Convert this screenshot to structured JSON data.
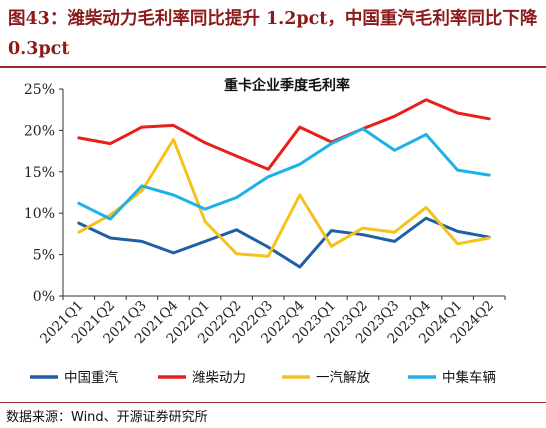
{
  "figure": {
    "title": "图43：潍柴动力毛利率同比提升 1.2pct，中国重汽毛利率同比下降 0.3pct",
    "source": "数据来源：Wind、开源证券研究所"
  },
  "chart_data": {
    "type": "line",
    "title": "重卡企业季度毛利率",
    "xlabel": "",
    "ylabel": "",
    "ylim": [
      0,
      25
    ],
    "yticks": [
      "0%",
      "5%",
      "10%",
      "15%",
      "20%",
      "25%"
    ],
    "grid": false,
    "legend_position": "bottom",
    "categories": [
      "2021Q1",
      "2021Q2",
      "2021Q3",
      "2021Q4",
      "2022Q1",
      "2022Q2",
      "2022Q3",
      "2022Q4",
      "2023Q1",
      "2023Q2",
      "2023Q3",
      "2023Q4",
      "2024Q1",
      "2024Q2"
    ],
    "series": [
      {
        "name": "中国重汽",
        "color": "#1f5fa6",
        "values": [
          8.8,
          7.0,
          6.6,
          5.2,
          6.6,
          8.0,
          5.9,
          3.5,
          7.9,
          7.4,
          6.6,
          9.4,
          7.8,
          7.1
        ]
      },
      {
        "name": "潍柴动力",
        "color": "#e8201a",
        "values": [
          19.1,
          18.4,
          20.4,
          20.6,
          18.5,
          16.9,
          15.3,
          20.4,
          18.6,
          20.2,
          21.7,
          23.7,
          22.1,
          21.4
        ]
      },
      {
        "name": "一汽解放",
        "color": "#f5c21b",
        "values": [
          7.7,
          9.8,
          12.7,
          18.9,
          9.0,
          5.1,
          4.8,
          12.2,
          6.0,
          8.2,
          7.7,
          10.7,
          6.3,
          7.0
        ]
      },
      {
        "name": "中集车辆",
        "color": "#20b0e8",
        "values": [
          11.2,
          9.3,
          13.3,
          12.2,
          10.5,
          11.9,
          14.4,
          15.9,
          18.4,
          20.2,
          17.6,
          19.5,
          15.2,
          14.6
        ]
      }
    ]
  }
}
